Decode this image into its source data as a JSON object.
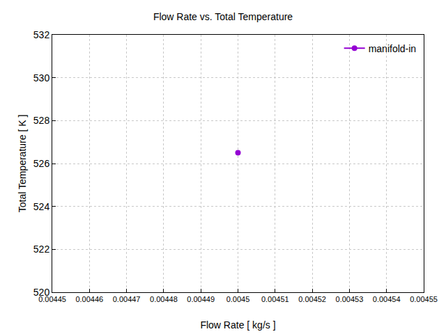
{
  "chart_data": {
    "type": "scatter",
    "title": "Flow Rate vs. Total Temperature",
    "x_label": "Flow Rate [ kg/s ]",
    "y_label": "Total Temperature [ K ]",
    "series": [
      {
        "name": "manifold-in",
        "color": "#9400d3",
        "marker": "circle",
        "line_style": "solid",
        "x": [
          0.0045
        ],
        "values": [
          526.5
        ]
      }
    ],
    "xlim": [
      0.00445,
      0.00455
    ],
    "xticks": [
      0.00445,
      0.00446,
      0.00447,
      0.00448,
      0.00449,
      0.0045,
      0.00451,
      0.00452,
      0.00453,
      0.00454,
      0.00455
    ],
    "ylim": [
      520,
      532
    ],
    "yticks": [
      520,
      522,
      524,
      526,
      528,
      530,
      532
    ],
    "grid": true,
    "legend": "top right"
  }
}
